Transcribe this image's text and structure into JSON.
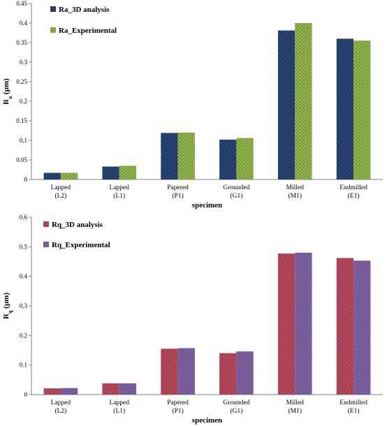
{
  "chart_data": [
    {
      "type": "bar",
      "categories": [
        [
          "Lapped",
          "(L2)"
        ],
        [
          "Lapped",
          "(L1)"
        ],
        [
          "Papered",
          "(P1)"
        ],
        [
          "Grounded",
          "(G1)"
        ],
        [
          "Milled",
          "(M1)"
        ],
        [
          "Endmilled",
          "(E1)"
        ]
      ],
      "series": [
        {
          "name": "Ra_3D analysis",
          "values": [
            0.017,
            0.033,
            0.119,
            0.102,
            0.381,
            0.36
          ],
          "color": "#1f3864",
          "stripe": "#3b5c8c",
          "pattern": "diagonal"
        },
        {
          "name": "Ra_Experimental",
          "values": [
            0.017,
            0.035,
            0.12,
            0.106,
            0.4,
            0.355
          ],
          "color": "#9bbb59",
          "stripe": "#6e8f2e",
          "pattern": "crosshatch"
        }
      ],
      "xlabel": "specimen",
      "ylabel": "Ra (µm)",
      "ylabel_main": "R",
      "ylabel_sub": "a",
      "ylabel_unit": " (µm)",
      "ylim": [
        0,
        0.45
      ],
      "ytick_labels": [
        "0",
        "0.05",
        "0.1",
        "0.15",
        "0.2",
        "0.25",
        "0.3",
        "0.35",
        "0.4",
        "0.45"
      ],
      "legend_position": "top-left",
      "grid": false
    },
    {
      "type": "bar",
      "categories": [
        [
          "Lapped",
          "(L2)"
        ],
        [
          "Lapped",
          "(L1)"
        ],
        [
          "Papered",
          "(P1)"
        ],
        [
          "Grounded",
          "(G1)"
        ],
        [
          "Milled",
          "(M1)"
        ],
        [
          "Endmilled",
          "(E1)"
        ]
      ],
      "series": [
        {
          "name": "Rq_3D analysis",
          "values": [
            0.021,
            0.038,
            0.155,
            0.14,
            0.477,
            0.462
          ],
          "color": "#b5495b",
          "stripe": "#8a2f3f",
          "pattern": "diagonal"
        },
        {
          "name": "Rq_Experimental",
          "values": [
            0.022,
            0.038,
            0.157,
            0.146,
            0.48,
            0.453
          ],
          "color": "#8064a2",
          "stripe": "#5d4580",
          "pattern": "diagonal-dense"
        }
      ],
      "xlabel": "specimen",
      "ylabel": "Rq (µm)",
      "ylabel_main": "R",
      "ylabel_sub": "q",
      "ylabel_unit": " (µm)",
      "ylim": [
        0,
        0.6
      ],
      "ytick_labels": [
        "0",
        "0.1",
        "0.2",
        "0.3",
        "0.4",
        "0.5",
        "0.6"
      ],
      "legend_position": "top-left",
      "grid": false
    }
  ]
}
